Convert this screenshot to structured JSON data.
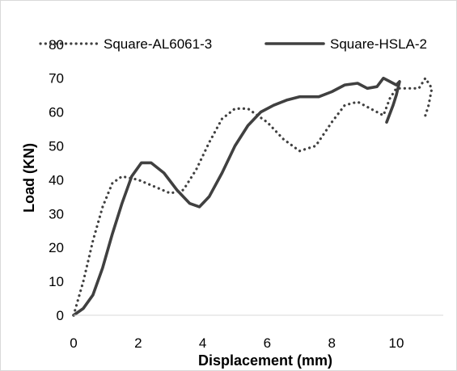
{
  "chart_data": {
    "type": "line",
    "xlabel": "Displacement (mm)",
    "ylabel": "Load (KN)",
    "xlim": [
      0,
      12
    ],
    "ylim": [
      0,
      80
    ],
    "x_ticks": [
      0,
      2,
      4,
      6,
      8,
      10
    ],
    "y_ticks": [
      0,
      10,
      20,
      30,
      40,
      50,
      60,
      70,
      80
    ],
    "grid": false,
    "legend_position": "top",
    "series": [
      {
        "name": "Square-AL6061-3",
        "style": "dotted",
        "color": "#404040",
        "points": [
          [
            0,
            0
          ],
          [
            0.3,
            10
          ],
          [
            0.6,
            22
          ],
          [
            0.9,
            32
          ],
          [
            1.2,
            39
          ],
          [
            1.5,
            41
          ],
          [
            2.0,
            40
          ],
          [
            2.5,
            38
          ],
          [
            3.0,
            36
          ],
          [
            3.4,
            37
          ],
          [
            3.8,
            43
          ],
          [
            4.2,
            51
          ],
          [
            4.6,
            58
          ],
          [
            5.0,
            61
          ],
          [
            5.4,
            61
          ],
          [
            6.0,
            57
          ],
          [
            6.5,
            52
          ],
          [
            7.0,
            48.5
          ],
          [
            7.5,
            50
          ],
          [
            8.0,
            57
          ],
          [
            8.4,
            62
          ],
          [
            8.8,
            63
          ],
          [
            9.2,
            61
          ],
          [
            9.6,
            59
          ],
          [
            9.8,
            64
          ],
          [
            10.0,
            67
          ],
          [
            10.4,
            67
          ],
          [
            10.7,
            67
          ],
          [
            10.9,
            70
          ],
          [
            11.1,
            67
          ],
          [
            11.0,
            62
          ],
          [
            10.9,
            59
          ]
        ]
      },
      {
        "name": "Square-HSLA-2",
        "style": "solid",
        "color": "#404040",
        "points": [
          [
            0,
            0
          ],
          [
            0.3,
            2
          ],
          [
            0.6,
            6
          ],
          [
            0.9,
            14
          ],
          [
            1.2,
            24
          ],
          [
            1.5,
            33
          ],
          [
            1.8,
            41
          ],
          [
            2.1,
            45
          ],
          [
            2.4,
            45
          ],
          [
            2.8,
            42
          ],
          [
            3.2,
            37
          ],
          [
            3.6,
            33
          ],
          [
            3.9,
            32
          ],
          [
            4.2,
            35
          ],
          [
            4.6,
            42
          ],
          [
            5.0,
            50
          ],
          [
            5.4,
            56
          ],
          [
            5.8,
            60
          ],
          [
            6.2,
            62
          ],
          [
            6.6,
            63.5
          ],
          [
            7.0,
            64.5
          ],
          [
            7.6,
            64.5
          ],
          [
            8.0,
            66
          ],
          [
            8.4,
            68
          ],
          [
            8.8,
            68.5
          ],
          [
            9.1,
            67
          ],
          [
            9.4,
            67.5
          ],
          [
            9.6,
            70
          ],
          [
            9.8,
            69
          ],
          [
            10.0,
            68
          ],
          [
            10.1,
            69
          ],
          [
            10.0,
            65
          ],
          [
            9.9,
            62
          ],
          [
            9.7,
            57
          ]
        ]
      }
    ]
  }
}
